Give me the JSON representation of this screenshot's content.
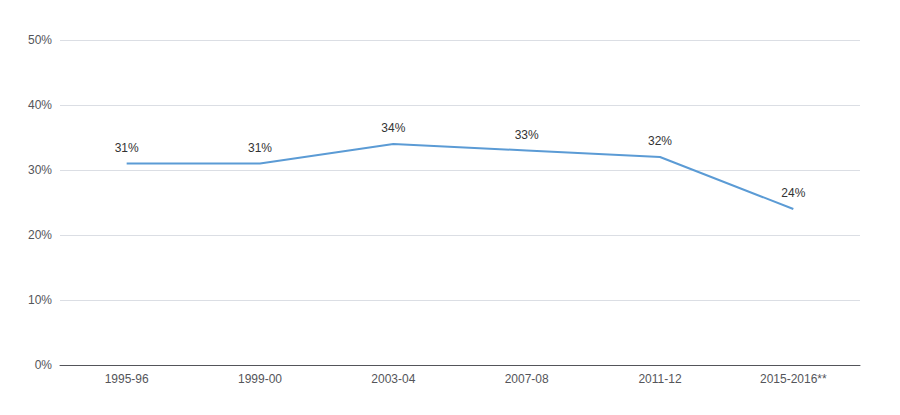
{
  "chart_data": {
    "type": "line",
    "categories": [
      "1995-96",
      "1999-00",
      "2003-04",
      "2007-08",
      "2011-12",
      "2015-2016**"
    ],
    "values": [
      31,
      31,
      34,
      33,
      32,
      24
    ],
    "value_labels": [
      "31%",
      "31%",
      "34%",
      "33%",
      "32%",
      "24%"
    ],
    "data_labels": true,
    "color": "#5b9bd5",
    "ylim": [
      0,
      50
    ],
    "yticks": [
      {
        "value": 0,
        "label": "0%"
      },
      {
        "value": 10,
        "label": "10%"
      },
      {
        "value": 20,
        "label": "20%"
      },
      {
        "value": 30,
        "label": "30%"
      },
      {
        "value": 40,
        "label": "40%"
      },
      {
        "value": 50,
        "label": "50%"
      }
    ],
    "grid": true
  }
}
